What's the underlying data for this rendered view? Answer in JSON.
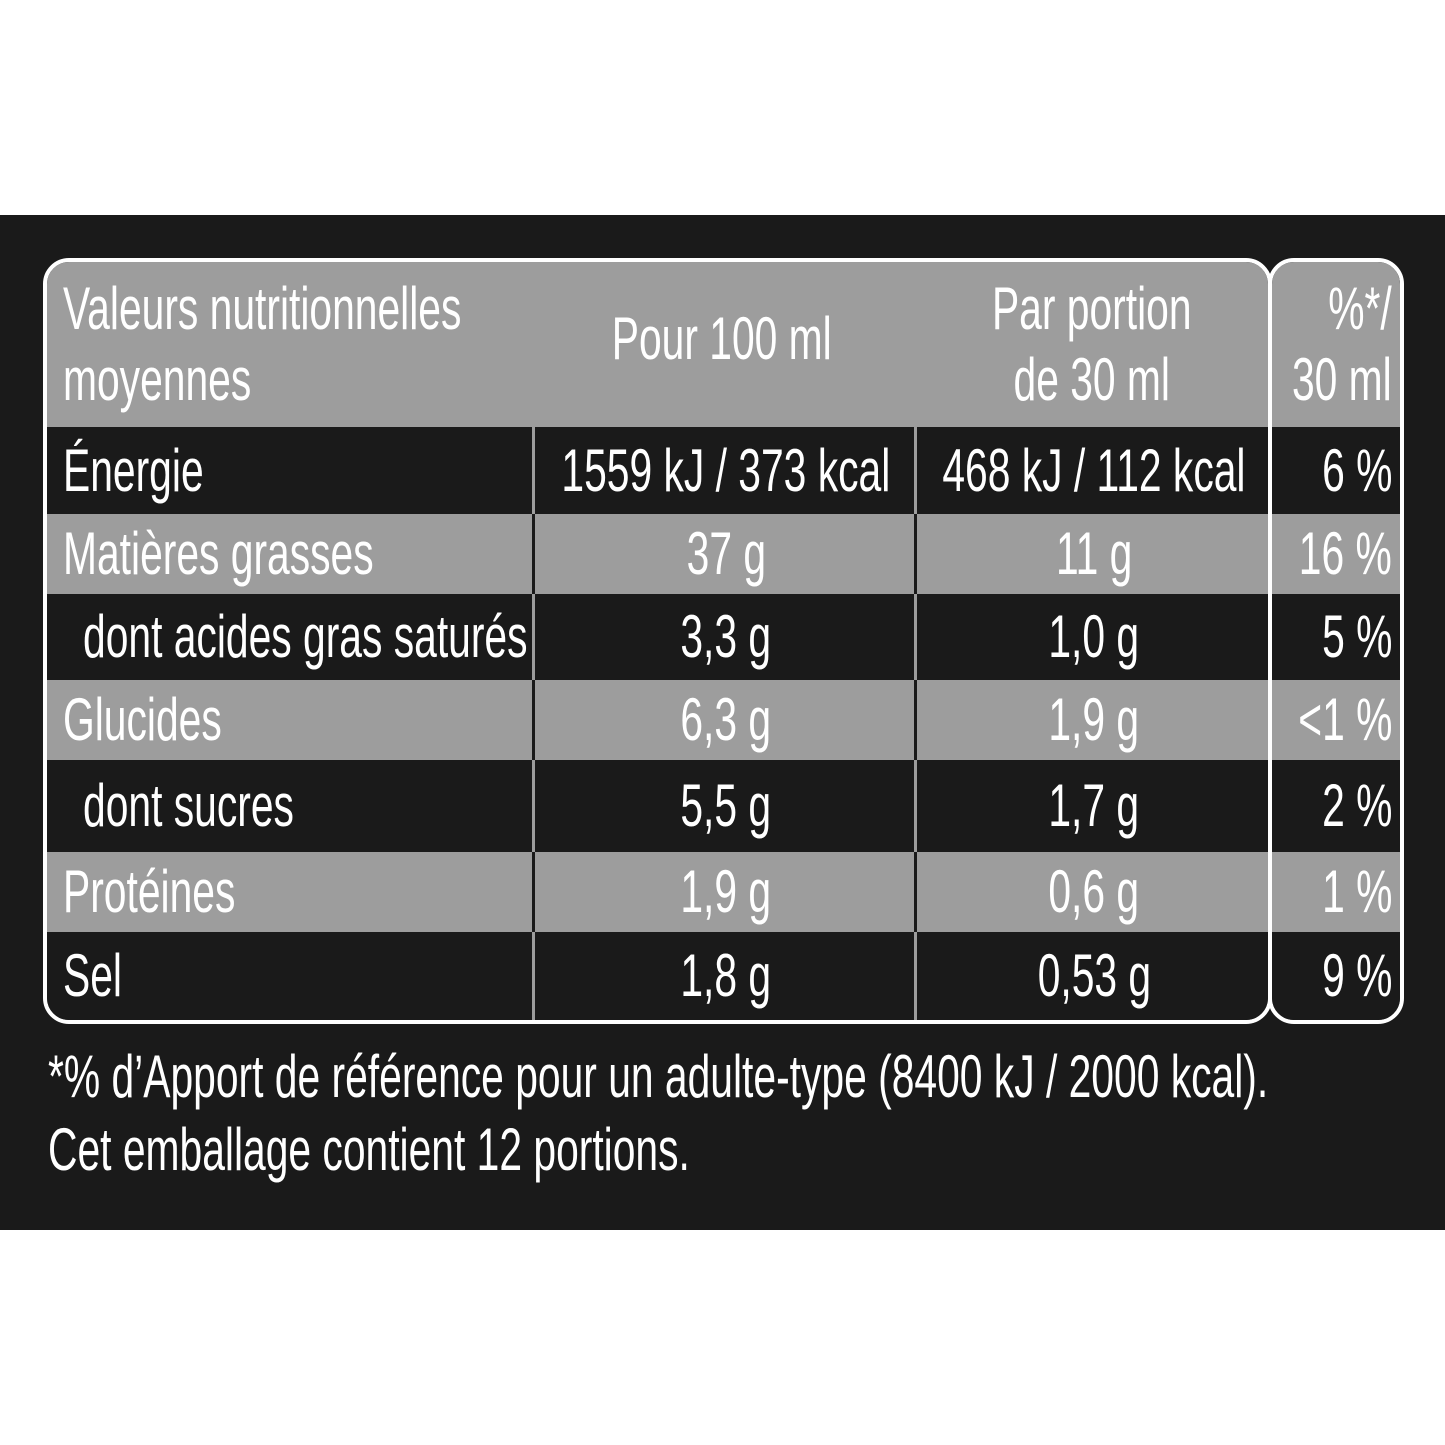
{
  "colors": {
    "background": "#1a1a1a",
    "row_gray": "#9d9d9d",
    "text": "#ffffff"
  },
  "header": {
    "label_line1": "Valeurs nutritionnelles",
    "label_line2": "moyennes",
    "col_100ml": "Pour 100 ml",
    "col_portion_line1": "Par portion",
    "col_portion_line2": "de 30 ml",
    "col_pct_line1": "%*/",
    "col_pct_line2": "30 ml"
  },
  "rows": [
    {
      "label": "Énergie",
      "per100": "1559 kJ / 373 kcal",
      "portion": "468 kJ / 112 kcal",
      "pct": "6 %"
    },
    {
      "label": "Matières grasses",
      "per100": "37 g",
      "portion": "11 g",
      "pct": "16 %"
    },
    {
      "label": "dont acides gras saturés",
      "per100": "3,3 g",
      "portion": "1,0 g",
      "pct": "5 %"
    },
    {
      "label": "Glucides",
      "per100": "6,3 g",
      "portion": "1,9 g",
      "pct": "<1 %"
    },
    {
      "label": "dont sucres",
      "per100": "5,5 g",
      "portion": "1,7 g",
      "pct": "2 %"
    },
    {
      "label": "Protéines",
      "per100": "1,9 g",
      "portion": "0,6 g",
      "pct": "1 %"
    },
    {
      "label": "Sel",
      "per100": "1,8 g",
      "portion": "0,53 g",
      "pct": "9 %"
    }
  ],
  "footnote": {
    "line1": "*% d’Apport de référence pour un adulte-type (8400 kJ / 2000 kcal).",
    "line2": "Cet emballage contient 12 portions."
  }
}
